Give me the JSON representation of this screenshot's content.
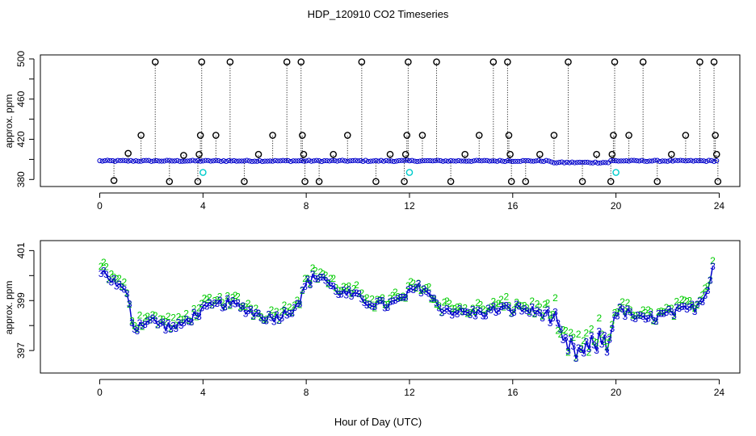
{
  "title": "HDP_120910  CO2 Timeseries",
  "xlabel": "Hour of Day (UTC)",
  "colors": {
    "raw_points": "#000000",
    "flagged_points": "#00cccc",
    "mean_points": "#0000cc",
    "series_2": "#00cc00",
    "series_3": "#0000cc"
  },
  "chart_data": [
    {
      "type": "scatter",
      "name": "top-panel",
      "ylabel": "approx. ppm",
      "xlim": [
        -2.3,
        24.8
      ],
      "ylim": [
        373,
        504
      ],
      "x_ticks": [
        0,
        4,
        8,
        12,
        16,
        20,
        24
      ],
      "x_tick_labels": [
        "0",
        "4",
        "8",
        "12",
        "16",
        "20",
        "24"
      ],
      "y_ticks": [
        380,
        420,
        460,
        500
      ],
      "y_tick_labels": [
        "380",
        "420",
        "460",
        "500"
      ],
      "baseline_ppm": 398.5,
      "spike_points": [
        {
          "x": 0.55,
          "y": 379
        },
        {
          "x": 1.1,
          "y": 406
        },
        {
          "x": 1.6,
          "y": 424
        },
        {
          "x": 2.15,
          "y": 497
        },
        {
          "x": 2.7,
          "y": 378
        },
        {
          "x": 3.25,
          "y": 404
        },
        {
          "x": 3.8,
          "y": 378
        },
        {
          "x": 3.85,
          "y": 405
        },
        {
          "x": 3.9,
          "y": 424
        },
        {
          "x": 3.95,
          "y": 497
        },
        {
          "x": 4.5,
          "y": 424
        },
        {
          "x": 5.05,
          "y": 497
        },
        {
          "x": 5.6,
          "y": 378
        },
        {
          "x": 6.15,
          "y": 405
        },
        {
          "x": 6.7,
          "y": 424
        },
        {
          "x": 7.25,
          "y": 497
        },
        {
          "x": 7.8,
          "y": 497
        },
        {
          "x": 7.85,
          "y": 424
        },
        {
          "x": 7.9,
          "y": 405
        },
        {
          "x": 7.95,
          "y": 378
        },
        {
          "x": 8.5,
          "y": 378
        },
        {
          "x": 9.05,
          "y": 405
        },
        {
          "x": 9.6,
          "y": 424
        },
        {
          "x": 10.15,
          "y": 497
        },
        {
          "x": 10.7,
          "y": 378
        },
        {
          "x": 11.25,
          "y": 405
        },
        {
          "x": 11.8,
          "y": 378
        },
        {
          "x": 11.85,
          "y": 405
        },
        {
          "x": 11.9,
          "y": 424
        },
        {
          "x": 11.95,
          "y": 497
        },
        {
          "x": 12.5,
          "y": 424
        },
        {
          "x": 13.05,
          "y": 497
        },
        {
          "x": 13.6,
          "y": 378
        },
        {
          "x": 14.15,
          "y": 405
        },
        {
          "x": 14.7,
          "y": 424
        },
        {
          "x": 15.25,
          "y": 497
        },
        {
          "x": 15.8,
          "y": 497
        },
        {
          "x": 15.85,
          "y": 424
        },
        {
          "x": 15.9,
          "y": 405
        },
        {
          "x": 15.95,
          "y": 378
        },
        {
          "x": 16.5,
          "y": 378
        },
        {
          "x": 17.05,
          "y": 405
        },
        {
          "x": 17.6,
          "y": 424
        },
        {
          "x": 18.15,
          "y": 497
        },
        {
          "x": 18.7,
          "y": 378
        },
        {
          "x": 19.25,
          "y": 405
        },
        {
          "x": 19.8,
          "y": 378
        },
        {
          "x": 19.85,
          "y": 405
        },
        {
          "x": 19.9,
          "y": 424
        },
        {
          "x": 19.95,
          "y": 497
        },
        {
          "x": 20.5,
          "y": 424
        },
        {
          "x": 21.05,
          "y": 497
        },
        {
          "x": 21.6,
          "y": 378
        },
        {
          "x": 22.15,
          "y": 405
        },
        {
          "x": 22.7,
          "y": 424
        },
        {
          "x": 23.25,
          "y": 497
        },
        {
          "x": 23.8,
          "y": 497
        },
        {
          "x": 23.85,
          "y": 424
        },
        {
          "x": 23.9,
          "y": 405
        },
        {
          "x": 23.95,
          "y": 378
        }
      ],
      "flagged_points": [
        {
          "x": 4.0,
          "y": 387
        },
        {
          "x": 12.0,
          "y": 387
        },
        {
          "x": 20.0,
          "y": 387
        }
      ]
    },
    {
      "type": "line",
      "name": "bottom-panel",
      "ylabel": "approx. ppm",
      "xlim": [
        -2.3,
        24.8
      ],
      "ylim": [
        396.1,
        401.4
      ],
      "x_ticks": [
        0,
        4,
        8,
        12,
        16,
        20,
        24
      ],
      "x_tick_labels": [
        "0",
        "4",
        "8",
        "12",
        "16",
        "20",
        "24"
      ],
      "y_ticks": [
        397,
        399,
        401
      ],
      "y_tick_labels": [
        "397",
        "399",
        "401"
      ],
      "series": [
        {
          "name": "2",
          "marker": "2"
        },
        {
          "name": "3",
          "marker": "3"
        }
      ],
      "profile": {
        "x": [
          0.0,
          0.3,
          0.6,
          0.9,
          1.15,
          1.3,
          1.6,
          2.0,
          2.5,
          3.0,
          3.4,
          3.8,
          4.2,
          4.8,
          5.3,
          5.8,
          6.2,
          6.6,
          7.0,
          7.4,
          7.8,
          8.0,
          8.3,
          8.6,
          9.0,
          9.4,
          9.8,
          10.2,
          10.6,
          11.0,
          11.4,
          11.8,
          12.2,
          12.6,
          12.9,
          13.2,
          13.6,
          14.0,
          14.4,
          14.8,
          15.2,
          15.6,
          15.9,
          16.2,
          16.6,
          17.0,
          17.3,
          17.6,
          17.8,
          18.0,
          18.3,
          18.6,
          18.9,
          19.2,
          19.5,
          19.7,
          19.9,
          20.2,
          20.6,
          21.0,
          21.4,
          21.8,
          22.2,
          22.6,
          23.0,
          23.3,
          23.5,
          23.7,
          23.8
        ],
        "y": [
          400.2,
          400.0,
          399.7,
          399.4,
          399.0,
          397.8,
          398.1,
          398.2,
          398.0,
          397.9,
          398.2,
          398.5,
          398.7,
          398.9,
          398.8,
          398.6,
          398.4,
          398.3,
          398.4,
          398.6,
          399.1,
          399.7,
          399.9,
          400.0,
          399.5,
          399.3,
          399.2,
          399.0,
          398.9,
          398.8,
          398.9,
          399.1,
          399.5,
          399.5,
          399.0,
          398.7,
          398.6,
          398.5,
          398.5,
          398.5,
          398.6,
          398.7,
          398.6,
          398.7,
          398.6,
          398.5,
          398.5,
          398.3,
          397.5,
          397.2,
          397.0,
          396.9,
          397.0,
          397.3,
          397.5,
          397.0,
          398.4,
          398.6,
          398.4,
          398.2,
          398.3,
          398.4,
          398.5,
          398.6,
          398.7,
          399.0,
          399.4,
          400.0,
          400.8
        ]
      }
    }
  ]
}
